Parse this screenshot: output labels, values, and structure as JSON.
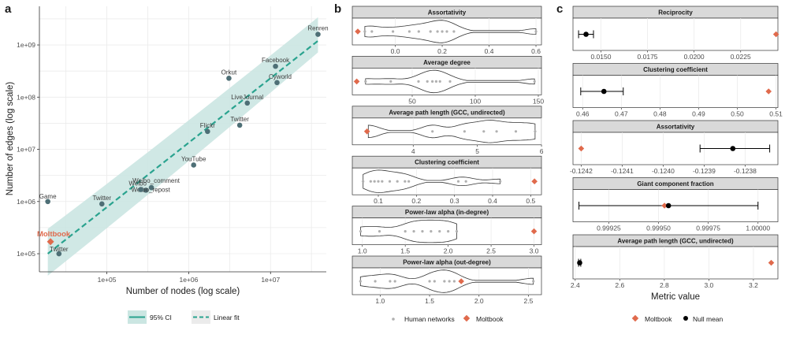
{
  "panel_letters": {
    "a": "a",
    "b": "b",
    "c": "c"
  },
  "chart_data": [
    {
      "id": "a",
      "type": "scatter",
      "xlabel": "Number of nodes (log scale)",
      "ylabel": "Number of edges (log scale)",
      "x_scale": "log10",
      "y_scale": "log10",
      "xlim": [
        15000,
        48000000
      ],
      "ylim": [
        45000,
        5500000000
      ],
      "x_ticks": [
        {
          "value": 100000,
          "label": "1e+05"
        },
        {
          "value": 1000000,
          "label": "1e+06"
        },
        {
          "value": 10000000,
          "label": "1e+07"
        }
      ],
      "y_ticks": [
        {
          "value": 100000,
          "label": "1e+05"
        },
        {
          "value": 1000000,
          "label": "1e+06"
        },
        {
          "value": 10000000,
          "label": "1e+07"
        },
        {
          "value": 100000000,
          "label": "1e+08"
        },
        {
          "value": 1000000000,
          "label": "1e+09"
        }
      ],
      "points": [
        {
          "label": "Renren",
          "x": 38000000,
          "y": 1600000000
        },
        {
          "label": "Facebook",
          "x": 11500000,
          "y": 390000000
        },
        {
          "label": "Orkut",
          "x": 3100000,
          "y": 230000000
        },
        {
          "label": "Cyworld",
          "x": 12000000,
          "y": 190000000
        },
        {
          "label": "LiveJournal",
          "x": 5200000,
          "y": 77000000
        },
        {
          "label": "Twitter",
          "x": 4200000,
          "y": 29000000
        },
        {
          "label": "Flickr",
          "x": 1700000,
          "y": 22000000
        },
        {
          "label": "YouTube",
          "x": 1150000,
          "y": 5000000
        },
        {
          "label": "Weibo_comment",
          "x": 350000,
          "y": 1850000
        },
        {
          "label": "Weibo_repost",
          "x": 300000,
          "y": 1650000
        },
        {
          "label": "Weibo",
          "x": 260000,
          "y": 1700000
        },
        {
          "label": "Twitter",
          "x": 87000,
          "y": 900000
        },
        {
          "label": "Game",
          "x": 19000,
          "y": 1000000
        },
        {
          "label": "Twitter",
          "x": 26000,
          "y": 100000
        }
      ],
      "highlight": {
        "label": "Moltbook",
        "x": 20500,
        "y": 170000
      },
      "fit_line": {
        "x": [
          19000,
          38000000
        ],
        "y": [
          100000,
          1200000000
        ]
      },
      "ci_band": {
        "x": [
          19000,
          38000000
        ],
        "lower": [
          38000,
          720000000
        ],
        "upper": [
          300000,
          3400000000
        ]
      },
      "legend": [
        {
          "name": "95% CI",
          "kind": "ci"
        },
        {
          "name": "Linear fit",
          "kind": "fit"
        }
      ],
      "colors": {
        "point": "#4e6f76",
        "highlight": "#e06a4c",
        "line": "#2aa38f",
        "band": "#cbe6e2"
      }
    },
    {
      "id": "b",
      "type": "violin",
      "legend": [
        {
          "name": "Human networks",
          "kind": "dot"
        },
        {
          "name": "Moltbook",
          "kind": "diamond"
        }
      ],
      "colors": {
        "dot": "#b0b0b0",
        "moltbook": "#e06a4c"
      },
      "panels": [
        {
          "title": "Assortativity",
          "xlim": [
            -0.17,
            0.61
          ],
          "ticks": [
            {
              "value": 0,
              "label": "0.0"
            },
            {
              "value": 0.2,
              "label": "0.2"
            },
            {
              "value": 0.4,
              "label": "0.4"
            },
            {
              "value": 0.6,
              "label": "0.6"
            }
          ],
          "points": [
            -0.13,
            -0.1,
            -0.01,
            0.06,
            0.1,
            0.15,
            0.18,
            0.2,
            0.22,
            0.25,
            0.6
          ],
          "moltbook": -0.16
        },
        {
          "title": "Average degree",
          "xlim": [
            5,
            150
          ],
          "ticks": [
            {
              "value": 50,
              "label": "50"
            },
            {
              "value": 100,
              "label": "100"
            },
            {
              "value": 150,
              "label": "150"
            }
          ],
          "points": [
            13,
            33,
            55,
            62,
            66,
            69,
            72,
            80,
            147
          ],
          "moltbook": 6
        },
        {
          "title": "Average path length (GCC, undirected)",
          "xlim": [
            3.1,
            5.95
          ],
          "ticks": [
            {
              "value": 4,
              "label": "4"
            },
            {
              "value": 5,
              "label": "5"
            },
            {
              "value": 6,
              "label": "6"
            }
          ],
          "points": [
            3.3,
            4.3,
            4.8,
            5.1,
            5.3,
            5.6,
            5.9
          ],
          "moltbook": 3.28
        },
        {
          "title": "Clustering coefficient",
          "xlim": [
            0.04,
            0.52
          ],
          "ticks": [
            {
              "value": 0.1,
              "label": "0.1"
            },
            {
              "value": 0.2,
              "label": "0.2"
            },
            {
              "value": 0.3,
              "label": "0.3"
            },
            {
              "value": 0.4,
              "label": "0.4"
            },
            {
              "value": 0.5,
              "label": "0.5"
            }
          ],
          "points": [
            0.06,
            0.08,
            0.09,
            0.1,
            0.11,
            0.13,
            0.15,
            0.17,
            0.18,
            0.31,
            0.33,
            0.42
          ],
          "moltbook": 0.51
        },
        {
          "title": "Power-law alpha (in-degree)",
          "xlim": [
            0.92,
            3.05
          ],
          "ticks": [
            {
              "value": 1,
              "label": "1.0"
            },
            {
              "value": 1.5,
              "label": "1.5"
            },
            {
              "value": 2,
              "label": "2.0"
            },
            {
              "value": 2.5,
              "label": "2.5"
            },
            {
              "value": 3,
              "label": "3.0"
            }
          ],
          "points": [
            0.98,
            1.2,
            1.5,
            1.6,
            1.7,
            1.8,
            1.9,
            2.0,
            2.1
          ],
          "moltbook": 3.0
        },
        {
          "title": "Power-law alpha (out-degree)",
          "xlim": [
            0.75,
            2.6
          ],
          "ticks": [
            {
              "value": 1,
              "label": "1.0"
            },
            {
              "value": 1.5,
              "label": "1.5"
            },
            {
              "value": 2,
              "label": "2.0"
            },
            {
              "value": 2.5,
              "label": "2.5"
            }
          ],
          "points": [
            0.8,
            0.95,
            1.1,
            1.15,
            1.5,
            1.55,
            1.65,
            1.7,
            1.75,
            2.55
          ],
          "moltbook": 1.82
        }
      ]
    },
    {
      "id": "c",
      "type": "dot_with_errorbars",
      "xlabel": "Metric value",
      "legend": [
        {
          "name": "Moltbook",
          "kind": "diamond"
        },
        {
          "name": "Null mean",
          "kind": "dot"
        }
      ],
      "colors": {
        "moltbook": "#e06a4c",
        "null": "#000000"
      },
      "panels": [
        {
          "title": "Reciprocity",
          "xlim": [
            0.0135,
            0.0245
          ],
          "ticks": [
            {
              "value": 0.015,
              "label": "0.0150"
            },
            {
              "value": 0.0175,
              "label": "0.0175"
            },
            {
              "value": 0.02,
              "label": "0.0200"
            },
            {
              "value": 0.0225,
              "label": "0.0225"
            }
          ],
          "null_mean": 0.0142,
          "ci": [
            0.0138,
            0.0146
          ],
          "moltbook": 0.0244
        },
        {
          "title": "Clustering coefficient",
          "xlim": [
            0.4575,
            0.5105
          ],
          "ticks": [
            {
              "value": 0.46,
              "label": "0.46"
            },
            {
              "value": 0.47,
              "label": "0.47"
            },
            {
              "value": 0.48,
              "label": "0.48"
            },
            {
              "value": 0.49,
              "label": "0.49"
            },
            {
              "value": 0.5,
              "label": "0.50"
            },
            {
              "value": 0.51,
              "label": "0.51"
            }
          ],
          "null_mean": 0.4655,
          "ci": [
            0.4595,
            0.4705
          ],
          "moltbook": 0.5081
        },
        {
          "title": "Assortativity",
          "xlim": [
            -0.12422,
            -0.12372
          ],
          "ticks": [
            {
              "value": -0.1242,
              "label": "-0.1242"
            },
            {
              "value": -0.1241,
              "label": "-0.1241"
            },
            {
              "value": -0.124,
              "label": "-0.1240"
            },
            {
              "value": -0.1239,
              "label": "-0.1239"
            },
            {
              "value": -0.1238,
              "label": "-0.1238"
            }
          ],
          "null_mean": -0.12383,
          "ci": [
            -0.12391,
            -0.12374
          ],
          "moltbook": -0.1242
        },
        {
          "title": "Giant component fraction",
          "xlim": [
            0.99907,
            1.0001
          ],
          "ticks": [
            {
              "value": 0.99925,
              "label": "0.99925"
            },
            {
              "value": 0.9995,
              "label": "0.99950"
            },
            {
              "value": 0.99975,
              "label": "0.99975"
            },
            {
              "value": 1.0,
              "label": "1.00000"
            }
          ],
          "null_mean": 0.99955,
          "ci": [
            0.9991,
            1.0
          ],
          "moltbook": 0.99953
        },
        {
          "title": "Average path length (GCC, undirected)",
          "xlim": [
            2.39,
            3.31
          ],
          "ticks": [
            {
              "value": 2.4,
              "label": "2.4"
            },
            {
              "value": 2.6,
              "label": "2.6"
            },
            {
              "value": 2.8,
              "label": "2.8"
            },
            {
              "value": 3.0,
              "label": "3.0"
            },
            {
              "value": 3.2,
              "label": "3.2"
            }
          ],
          "null_mean": 2.42,
          "ci": [
            2.415,
            2.425
          ],
          "moltbook": 3.28
        }
      ]
    }
  ]
}
